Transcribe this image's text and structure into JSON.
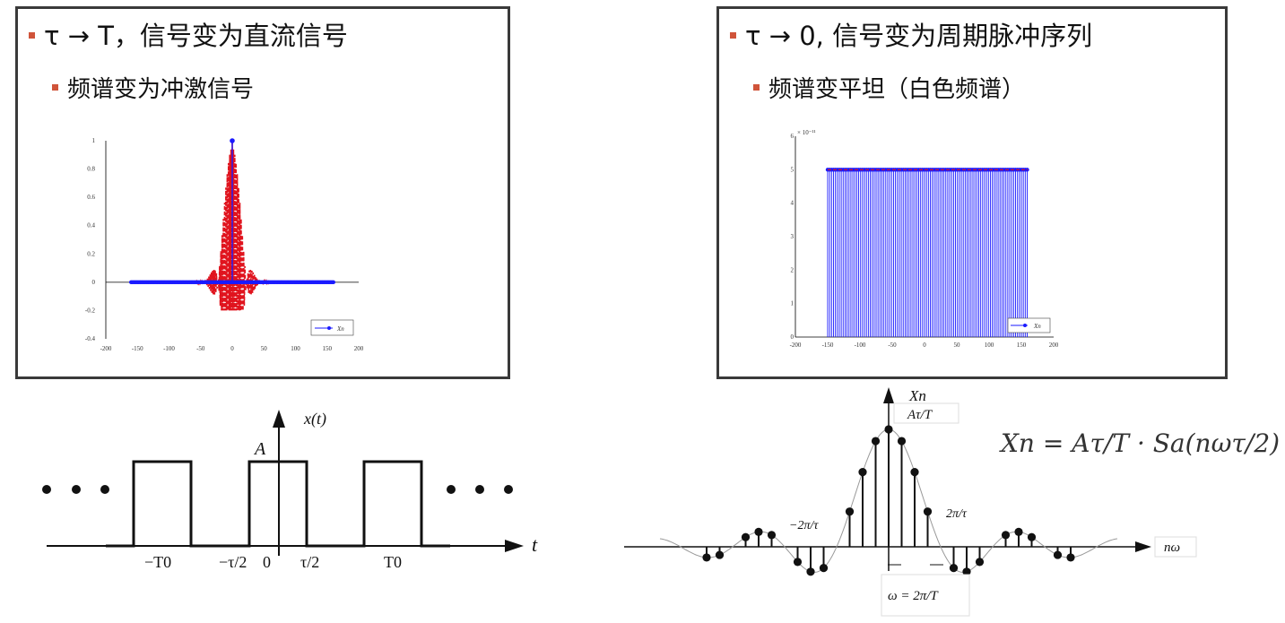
{
  "left_panel": {
    "bullet_main": "τ → T，信号变为直流信号",
    "bullet_sub": "频谱变为冲激信号"
  },
  "right_panel": {
    "bullet_main": "τ → 0, 信号变为周期脉冲序列",
    "bullet_sub": "频谱变平坦（白色频谱）"
  },
  "colors": {
    "bullet": "#d0543a",
    "stem": "#1a1aff",
    "dashed": "#e0141e"
  },
  "chart_data": [
    {
      "type": "line",
      "xlim": [
        -200,
        200
      ],
      "ylim": [
        -0.4,
        1
      ],
      "x_ticks": [
        "-200",
        "-150",
        "-100",
        "-50",
        "0",
        "50",
        "100",
        "150",
        "200"
      ],
      "y_ticks": [
        "1",
        "0.8",
        "0.6",
        "0.4",
        "0.2",
        "0",
        "-0.2",
        "-0.4"
      ],
      "x_range": [
        -160,
        160
      ],
      "peak": {
        "x": 0,
        "y": 1
      },
      "legend": "Xn",
      "legend_placement": "bottom-right"
    },
    {
      "type": "bar",
      "xlim": [
        -200,
        200
      ],
      "ylim": [
        0,
        6
      ],
      "y_scale_label": "× 10⁻¹¹",
      "x_ticks": [
        "-200",
        "-150",
        "-100",
        "-50",
        "0",
        "50",
        "100",
        "150",
        "200"
      ],
      "y_ticks": [
        "6",
        "5",
        "4",
        "3",
        "2",
        "1",
        "0"
      ],
      "x_range": [
        -150,
        160
      ],
      "value": 5,
      "legend": "Xn",
      "legend_placement": "bottom-right"
    }
  ],
  "pulse_diagram": {
    "ylabel": "x(t)",
    "amplitude": "A",
    "xlabel": "t",
    "tick_labels": [
      "−T0",
      "−τ/2",
      "0",
      "τ/2",
      "T0"
    ]
  },
  "spectrum_diagram": {
    "ylabel": "Xn",
    "peak_label": "Aτ/T",
    "xlabel": "nω",
    "left_zero": "−2π/τ",
    "right_zero": "2π/τ",
    "omega_label": "ω = 2π/T",
    "formula": "Xn = Aτ/T · Sa(nωτ/2)"
  }
}
